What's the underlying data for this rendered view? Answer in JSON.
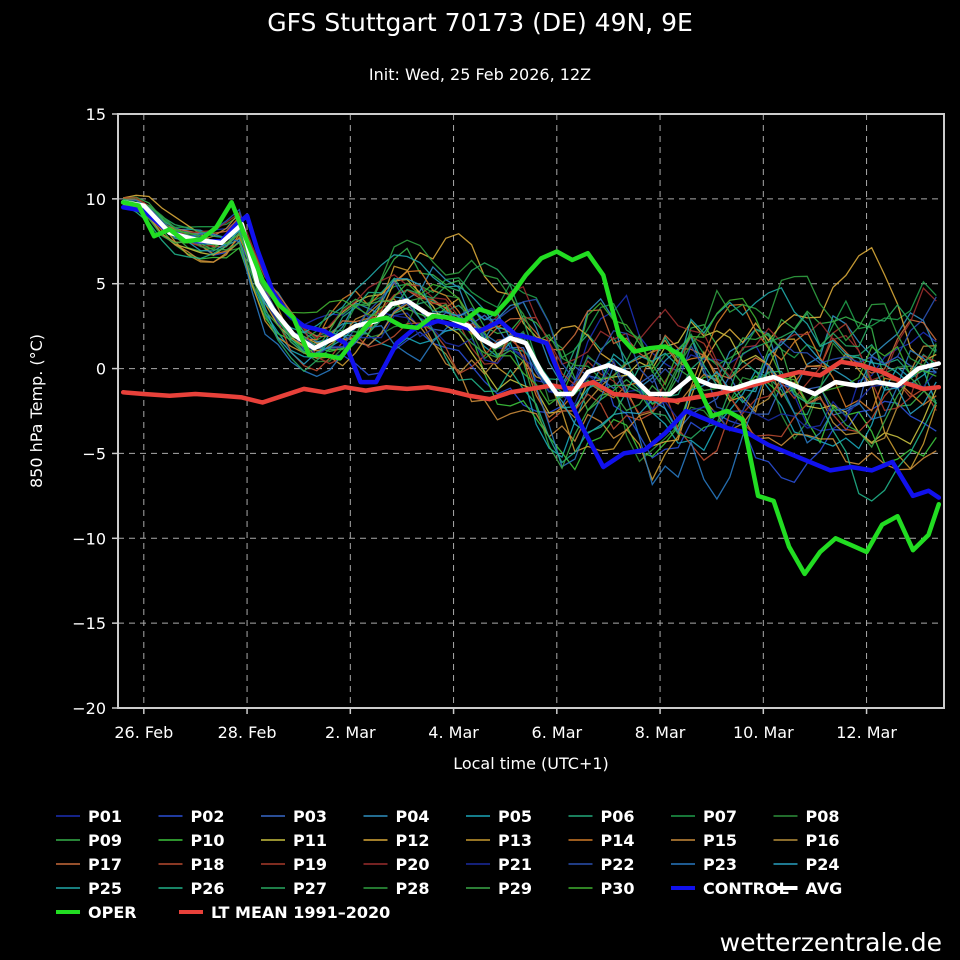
{
  "chart_data": {
    "type": "line",
    "title": "GFS Stuttgart 70173 (DE) 49N, 9E",
    "subtitle": "Init: Wed, 25 Feb 2026, 12Z",
    "xlabel": "Local time (UTC+1)",
    "ylabel": "850 hPa Temp. (°C)",
    "ylim": [
      -20,
      15
    ],
    "yticks": [
      15,
      10,
      5,
      0,
      -5,
      -10,
      -15,
      -20
    ],
    "x_range_days": [
      0,
      16
    ],
    "x_tick_days": [
      0.5,
      2.5,
      4.5,
      6.5,
      8.5,
      10.5,
      12.5,
      14.5
    ],
    "x_tick_labels": [
      "26. Feb",
      "28. Feb",
      "2. Mar",
      "4. Mar",
      "6. Mar",
      "8. Mar",
      "10. Mar",
      "12. Mar"
    ],
    "grid": true,
    "watermark": "wetterzentrale.de",
    "colors": {
      "oper": "#22dd22",
      "control": "#1111ee",
      "avg": "#ffffff",
      "lt_mean": "#e8413a",
      "grid": "#aaaaaa",
      "frame": "#cccccc"
    },
    "main_series": [
      {
        "name": "OPER",
        "key": "oper",
        "x": [
          0.1,
          0.4,
          0.7,
          1.0,
          1.3,
          1.6,
          1.9,
          2.2,
          2.5,
          2.8,
          3.1,
          3.4,
          3.7,
          4.0,
          4.3,
          4.6,
          4.9,
          5.2,
          5.5,
          5.8,
          6.1,
          6.4,
          6.7,
          7.0,
          7.3,
          7.6,
          7.9,
          8.2,
          8.5,
          8.8,
          9.1,
          9.4,
          9.7,
          10.0,
          10.3,
          10.6,
          10.9,
          11.2,
          11.5,
          11.8,
          12.1,
          12.4,
          12.7,
          13.0,
          13.3,
          13.6,
          13.9,
          14.2,
          14.5,
          14.8,
          15.1,
          15.4,
          15.7,
          15.9
        ],
        "y": [
          9.8,
          9.6,
          7.8,
          8.2,
          7.5,
          7.6,
          8.3,
          9.8,
          7.5,
          5.2,
          3.8,
          3.0,
          0.8,
          0.8,
          0.6,
          1.8,
          2.8,
          3.0,
          2.5,
          2.4,
          3.1,
          3.0,
          2.8,
          3.5,
          3.2,
          4.2,
          5.5,
          6.5,
          6.9,
          6.4,
          6.8,
          5.5,
          2.0,
          1.0,
          1.2,
          1.3,
          0.8,
          -0.8,
          -2.8,
          -2.5,
          -3.0,
          -7.5,
          -7.8,
          -10.5,
          -12.1,
          -10.8,
          -10.0,
          -10.4,
          -10.8,
          -9.2,
          -8.7,
          -10.7,
          -9.8,
          -8.0
        ]
      },
      {
        "name": "CONTROL",
        "key": "control",
        "x": [
          0.1,
          0.5,
          1.0,
          1.5,
          2.0,
          2.3,
          2.5,
          2.7,
          3.0,
          3.3,
          3.6,
          4.0,
          4.4,
          4.7,
          5.0,
          5.4,
          5.8,
          6.2,
          6.6,
          7.0,
          7.4,
          7.7,
          8.0,
          8.3,
          8.7,
          9.0,
          9.4,
          9.8,
          10.2,
          10.6,
          11.0,
          11.4,
          11.8,
          12.2,
          12.6,
          13.0,
          13.4,
          13.8,
          14.2,
          14.6,
          15.0,
          15.4,
          15.7,
          15.9
        ],
        "y": [
          9.5,
          9.3,
          8.0,
          7.5,
          7.5,
          8.5,
          9.0,
          7.0,
          4.5,
          3.2,
          2.5,
          2.2,
          1.5,
          -0.8,
          -0.8,
          1.5,
          2.5,
          2.8,
          2.5,
          2.2,
          2.8,
          2.0,
          1.8,
          1.5,
          -1.5,
          -3.5,
          -5.8,
          -5.0,
          -4.8,
          -3.8,
          -2.5,
          -3.0,
          -3.5,
          -3.8,
          -4.5,
          -5.0,
          -5.5,
          -6.0,
          -5.8,
          -6.0,
          -5.5,
          -7.5,
          -7.2,
          -7.6
        ]
      },
      {
        "name": "AVG",
        "key": "avg",
        "x": [
          0.1,
          0.5,
          1.0,
          1.5,
          2.0,
          2.4,
          2.7,
          3.0,
          3.4,
          3.8,
          4.2,
          4.6,
          5.0,
          5.3,
          5.6,
          6.0,
          6.4,
          6.8,
          7.0,
          7.3,
          7.6,
          7.9,
          8.2,
          8.5,
          8.8,
          9.1,
          9.5,
          9.9,
          10.3,
          10.7,
          11.1,
          11.5,
          11.9,
          12.3,
          12.7,
          13.1,
          13.5,
          13.9,
          14.3,
          14.7,
          15.1,
          15.5,
          15.9
        ],
        "y": [
          9.8,
          9.6,
          8.0,
          7.6,
          7.4,
          8.5,
          5.0,
          3.5,
          2.0,
          1.2,
          1.8,
          2.5,
          2.8,
          3.8,
          4.0,
          3.2,
          3.0,
          2.5,
          1.8,
          1.3,
          1.8,
          1.5,
          -0.2,
          -1.5,
          -1.5,
          -0.2,
          0.2,
          -0.3,
          -1.5,
          -1.5,
          -0.5,
          -1.0,
          -1.2,
          -0.8,
          -0.5,
          -1.0,
          -1.5,
          -0.8,
          -1.0,
          -0.8,
          -1.0,
          0.0,
          0.3
        ]
      },
      {
        "name": "LT MEAN 1991–2020",
        "key": "lt_mean",
        "x": [
          0.1,
          0.5,
          1.0,
          1.5,
          2.0,
          2.4,
          2.8,
          3.2,
          3.6,
          4.0,
          4.4,
          4.8,
          5.2,
          5.6,
          6.0,
          6.4,
          6.8,
          7.2,
          7.6,
          8.0,
          8.4,
          8.8,
          9.2,
          9.6,
          10.0,
          10.4,
          10.8,
          11.2,
          11.6,
          12.0,
          12.4,
          12.8,
          13.2,
          13.6,
          14.0,
          14.4,
          14.8,
          15.2,
          15.6,
          15.9
        ],
        "y": [
          -1.4,
          -1.5,
          -1.6,
          -1.5,
          -1.6,
          -1.7,
          -2.0,
          -1.6,
          -1.2,
          -1.4,
          -1.1,
          -1.3,
          -1.1,
          -1.2,
          -1.1,
          -1.3,
          -1.6,
          -1.8,
          -1.4,
          -1.2,
          -1.0,
          -1.2,
          -0.8,
          -1.5,
          -1.6,
          -1.8,
          -1.9,
          -1.7,
          -1.5,
          -1.2,
          -0.9,
          -0.5,
          -0.2,
          -0.4,
          0.4,
          0.2,
          -0.2,
          -0.8,
          -1.2,
          -1.1
        ]
      }
    ],
    "members": [
      {
        "name": "P01",
        "color": "#1c2fb5"
      },
      {
        "name": "P02",
        "color": "#2a4fd6"
      },
      {
        "name": "P03",
        "color": "#3868c8"
      },
      {
        "name": "P04",
        "color": "#2f8fc0"
      },
      {
        "name": "P05",
        "color": "#1aa6b8"
      },
      {
        "name": "P06",
        "color": "#22a87a"
      },
      {
        "name": "P07",
        "color": "#1f9e4a"
      },
      {
        "name": "P08",
        "color": "#2e8f3a"
      },
      {
        "name": "P09",
        "color": "#36b04a"
      },
      {
        "name": "P10",
        "color": "#3cc43c"
      },
      {
        "name": "P11",
        "color": "#c8c040"
      },
      {
        "name": "P12",
        "color": "#d8a838"
      },
      {
        "name": "P13",
        "color": "#c89a30"
      },
      {
        "name": "P14",
        "color": "#d07a28"
      },
      {
        "name": "P15",
        "color": "#c88a3a"
      },
      {
        "name": "P16",
        "color": "#b8903a"
      },
      {
        "name": "P17",
        "color": "#c86a3a"
      },
      {
        "name": "P18",
        "color": "#b84a30"
      },
      {
        "name": "P19",
        "color": "#a83a2a"
      },
      {
        "name": "P20",
        "color": "#9a2e2e"
      },
      {
        "name": "P21",
        "color": "#1a2aa0"
      },
      {
        "name": "P22",
        "color": "#2a50b0"
      },
      {
        "name": "P23",
        "color": "#2878c0"
      },
      {
        "name": "P24",
        "color": "#28a0c0"
      },
      {
        "name": "P25",
        "color": "#20a8a8"
      },
      {
        "name": "P26",
        "color": "#20b088"
      },
      {
        "name": "P27",
        "color": "#28a860"
      },
      {
        "name": "P28",
        "color": "#30a040"
      },
      {
        "name": "P29",
        "color": "#3aa848"
      },
      {
        "name": "P30",
        "color": "#40b030"
      }
    ],
    "legend": {
      "placement": "bottom",
      "entries": [
        "P01",
        "P02",
        "P03",
        "P04",
        "P05",
        "P06",
        "P07",
        "P08",
        "P09",
        "P10",
        "P11",
        "P12",
        "P13",
        "P14",
        "P15",
        "P16",
        "P17",
        "P18",
        "P19",
        "P20",
        "P21",
        "P22",
        "P23",
        "P24",
        "P25",
        "P26",
        "P27",
        "P28",
        "P29",
        "P30",
        "CONTROL",
        "AVG",
        "OPER",
        "LT MEAN 1991–2020"
      ]
    }
  }
}
